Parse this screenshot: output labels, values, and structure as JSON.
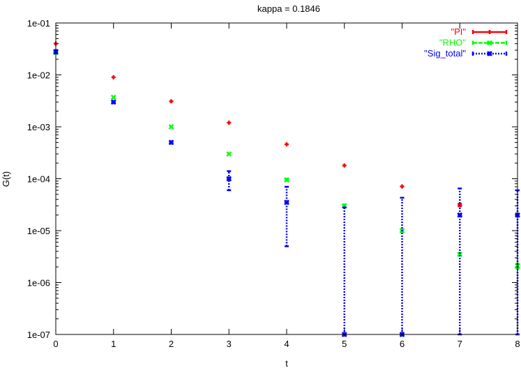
{
  "chart_data": {
    "type": "scatter",
    "title": "kappa = 0.1846",
    "xlabel": "t",
    "ylabel": "G(t)",
    "xlim": [
      0,
      8
    ],
    "ylim": [
      1e-07,
      0.1
    ],
    "yscale": "log",
    "x_ticks": [
      0,
      1,
      2,
      3,
      4,
      5,
      6,
      7,
      8
    ],
    "x_tick_labels": [
      "0",
      "1",
      "2",
      "3",
      "4",
      "5",
      "6",
      "7",
      "8"
    ],
    "y_ticks": [
      1e-07,
      1e-06,
      1e-05,
      0.0001,
      0.001,
      0.01,
      0.1
    ],
    "y_tick_labels": [
      "1e-07",
      "1e-06",
      "1e-05",
      "1e-04",
      "1e-03",
      "1e-02",
      "1e-01"
    ],
    "grid": false,
    "legend_position": "top-right",
    "series": [
      {
        "name": "\"PI\"",
        "color": "#ff0000",
        "marker": "plus",
        "line_style": "solid",
        "x": [
          0,
          1,
          2,
          3,
          4,
          5,
          6,
          7
        ],
        "y": [
          0.04,
          0.009,
          0.0031,
          0.0012,
          0.00046,
          0.00018,
          7.1e-05,
          3.1e-05
        ],
        "y_err": [
          [
            0.04,
            0.04
          ],
          [
            0.009,
            0.009
          ],
          [
            0.0031,
            0.0031
          ],
          [
            0.0012,
            0.0012
          ],
          [
            0.00046,
            0.00046
          ],
          [
            0.00018,
            0.00018
          ],
          [
            7.1e-05,
            7.1e-05
          ],
          [
            2.95e-05,
            3.3e-05
          ]
        ]
      },
      {
        "name": "\"RHO\"",
        "color": "#00ff00",
        "marker": "cross",
        "line_style": "dashed",
        "x": [
          0,
          1,
          2,
          3,
          4,
          5,
          6,
          7,
          8
        ],
        "y": [
          0.027,
          0.0037,
          0.001,
          0.0003,
          9.5e-05,
          3e-05,
          1e-05,
          3.5e-06,
          2.1e-06
        ],
        "y_err": [
          [
            0.027,
            0.027
          ],
          [
            0.0037,
            0.0037
          ],
          [
            0.001,
            0.001
          ],
          [
            0.0003,
            0.0003
          ],
          [
            9.2e-05,
            0.0001
          ],
          [
            2.8e-05,
            3.2e-05
          ],
          [
            9.5e-06,
            1.05e-05
          ],
          [
            3.3e-06,
            3.7e-06
          ],
          [
            1.9e-06,
            2.3e-06
          ]
        ]
      },
      {
        "name": "\"Sig_total\"",
        "color": "#0000ff",
        "marker": "star",
        "line_style": "dotted",
        "x": [
          0,
          1,
          2,
          3,
          4,
          5,
          6,
          7,
          8
        ],
        "y": [
          0.028,
          0.003,
          0.0005,
          0.0001,
          3.5e-05,
          1e-07,
          1e-07,
          2e-05,
          2e-05
        ],
        "y_err": [
          [
            0.026,
            0.03
          ],
          [
            0.0029,
            0.0031
          ],
          [
            0.00048,
            0.00052
          ],
          [
            6e-05,
            0.00014
          ],
          [
            5e-06,
            7e-05
          ],
          [
            1e-07,
            2.8e-05
          ],
          [
            1e-07,
            4.3e-05
          ],
          [
            1e-07,
            6.5e-05
          ],
          [
            1e-07,
            6e-05
          ]
        ]
      }
    ]
  }
}
